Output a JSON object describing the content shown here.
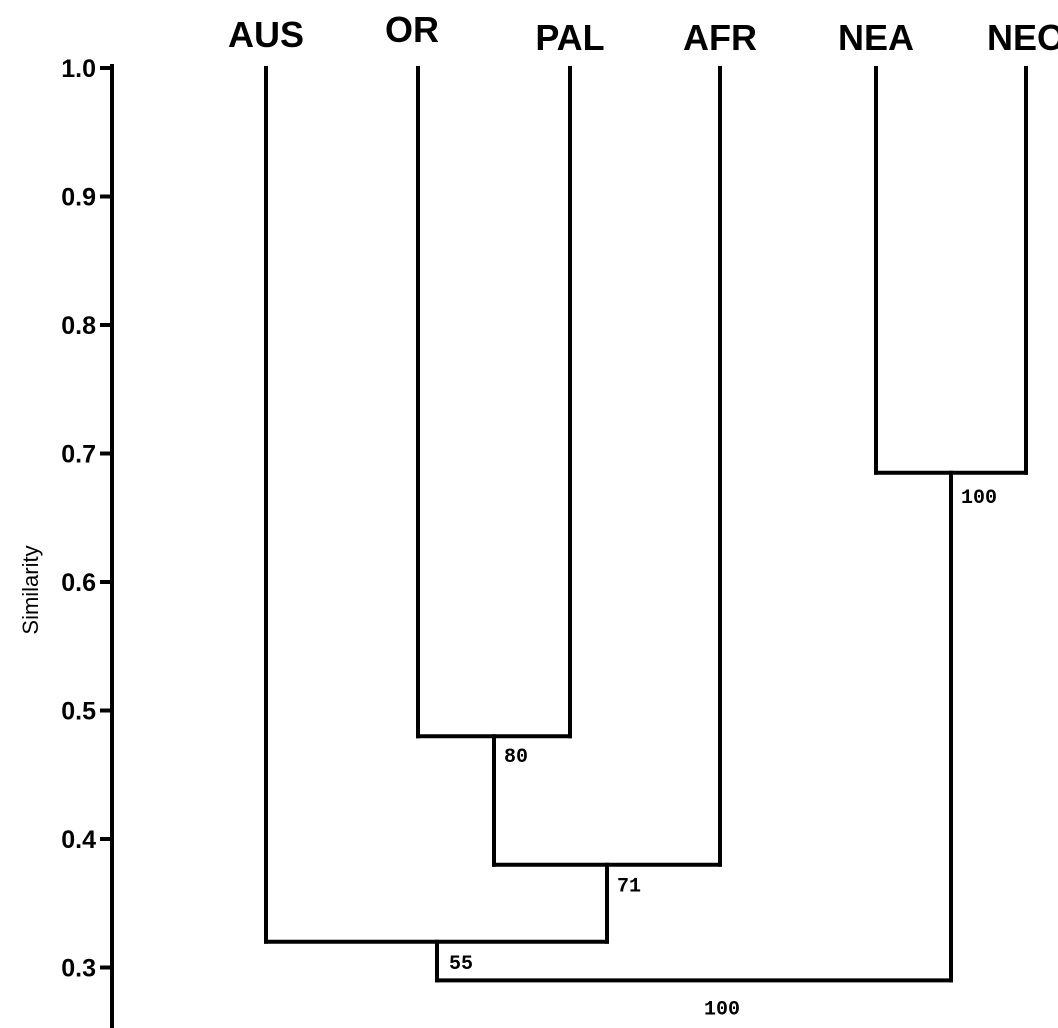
{
  "chart_data": {
    "type": "dendrogram",
    "ylabel": "Similarity",
    "ylim": [
      0.25,
      1.0
    ],
    "yticks": [
      1.0,
      0.9,
      0.8,
      0.7,
      0.6,
      0.5,
      0.4,
      0.3
    ],
    "ytick_labels": [
      "1.0",
      "0.9",
      "0.8",
      "0.7",
      "0.6",
      "0.5",
      "0.4",
      "0.3"
    ],
    "leaves": [
      "AUS",
      "OR",
      "PAL",
      "AFR",
      "NEA",
      "NEO"
    ],
    "clusters": [
      {
        "id": "c1",
        "members": [
          "OR",
          "PAL"
        ],
        "similarity": 0.48,
        "support": "80"
      },
      {
        "id": "c2",
        "members": [
          "c1",
          "AFR"
        ],
        "similarity": 0.38,
        "support": "71"
      },
      {
        "id": "c3",
        "members": [
          "AUS",
          "c2"
        ],
        "similarity": 0.32,
        "support": "55"
      },
      {
        "id": "c4",
        "members": [
          "NEA",
          "NEO"
        ],
        "similarity": 0.685,
        "support": "100"
      },
      {
        "id": "c5",
        "members": [
          "c3",
          "c4"
        ],
        "similarity": 0.29,
        "support": "100"
      }
    ]
  }
}
